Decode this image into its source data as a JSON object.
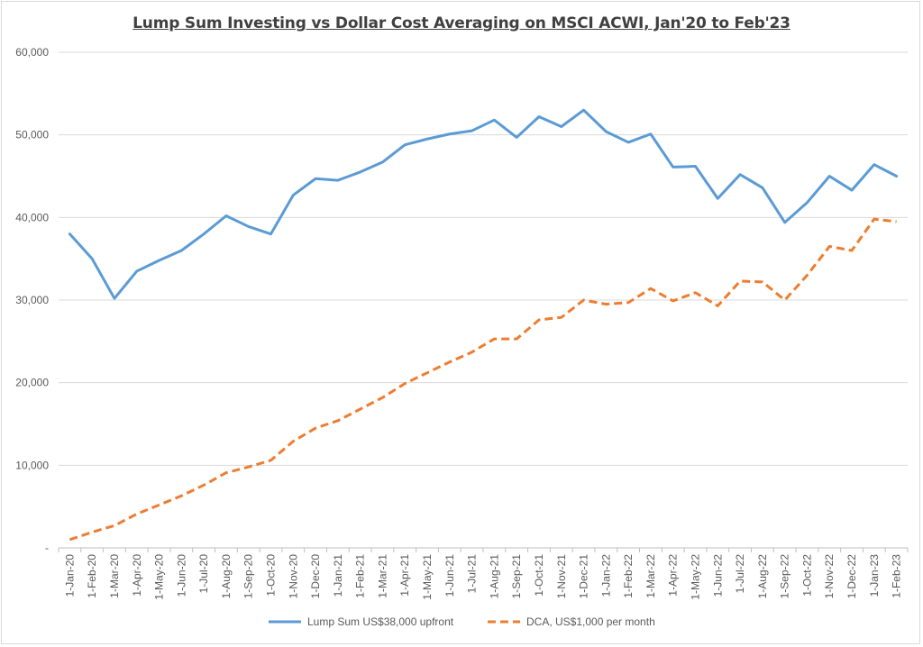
{
  "chart_data": {
    "type": "line",
    "title": "Lump Sum Investing vs Dollar Cost Averaging on MSCI ACWI, Jan'20 to Feb'23",
    "xlabel": "",
    "ylabel": "",
    "ylim": [
      0,
      60000
    ],
    "yticks": [
      0,
      10000,
      20000,
      30000,
      40000,
      50000,
      60000
    ],
    "ytick_labels": [
      "-",
      "10,000",
      "20,000",
      "30,000",
      "40,000",
      "50,000",
      "60,000"
    ],
    "grid": true,
    "legend_position": "bottom",
    "categories": [
      "1-Jan-20",
      "1-Feb-20",
      "1-Mar-20",
      "1-Apr-20",
      "1-May-20",
      "1-Jun-20",
      "1-Jul-20",
      "1-Aug-20",
      "1-Sep-20",
      "1-Oct-20",
      "1-Nov-20",
      "1-Dec-20",
      "1-Jan-21",
      "1-Feb-21",
      "1-Mar-21",
      "1-Apr-21",
      "1-May-21",
      "1-Jun-21",
      "1-Jul-21",
      "1-Aug-21",
      "1-Sep-21",
      "1-Oct-21",
      "1-Nov-21",
      "1-Dec-21",
      "1-Jan-22",
      "1-Feb-22",
      "1-Mar-22",
      "1-Apr-22",
      "1-May-22",
      "1-Jun-22",
      "1-Jul-22",
      "1-Aug-22",
      "1-Sep-22",
      "1-Oct-22",
      "1-Nov-22",
      "1-Dec-22",
      "1-Jan-23",
      "1-Feb-23"
    ],
    "series": [
      {
        "name": "Lump Sum US$38,000 upfront",
        "color": "#5b9bd5",
        "dash": "solid",
        "values": [
          38000,
          35000,
          30200,
          33500,
          34800,
          36000,
          38000,
          40200,
          38900,
          38000,
          42700,
          44700,
          44500,
          45500,
          46700,
          48800,
          49500,
          50100,
          50500,
          51800,
          49700,
          52200,
          51000,
          53000,
          50400,
          49100,
          50100,
          46100,
          46200,
          42300,
          45200,
          43600,
          39400,
          41800,
          45000,
          43300,
          46400,
          45000
        ]
      },
      {
        "name": "DCA, US$1,000 per month",
        "color": "#ed7d31",
        "dash": "dashed",
        "values": [
          1000,
          1900,
          2700,
          4100,
          5200,
          6300,
          7600,
          9100,
          9800,
          10600,
          12900,
          14500,
          15400,
          16800,
          18200,
          19900,
          21200,
          22500,
          23700,
          25300,
          25300,
          27600,
          27900,
          30000,
          29500,
          29700,
          31400,
          29900,
          30900,
          29300,
          32300,
          32200,
          30000,
          33000,
          36500,
          36000,
          39800,
          39500
        ]
      }
    ]
  }
}
